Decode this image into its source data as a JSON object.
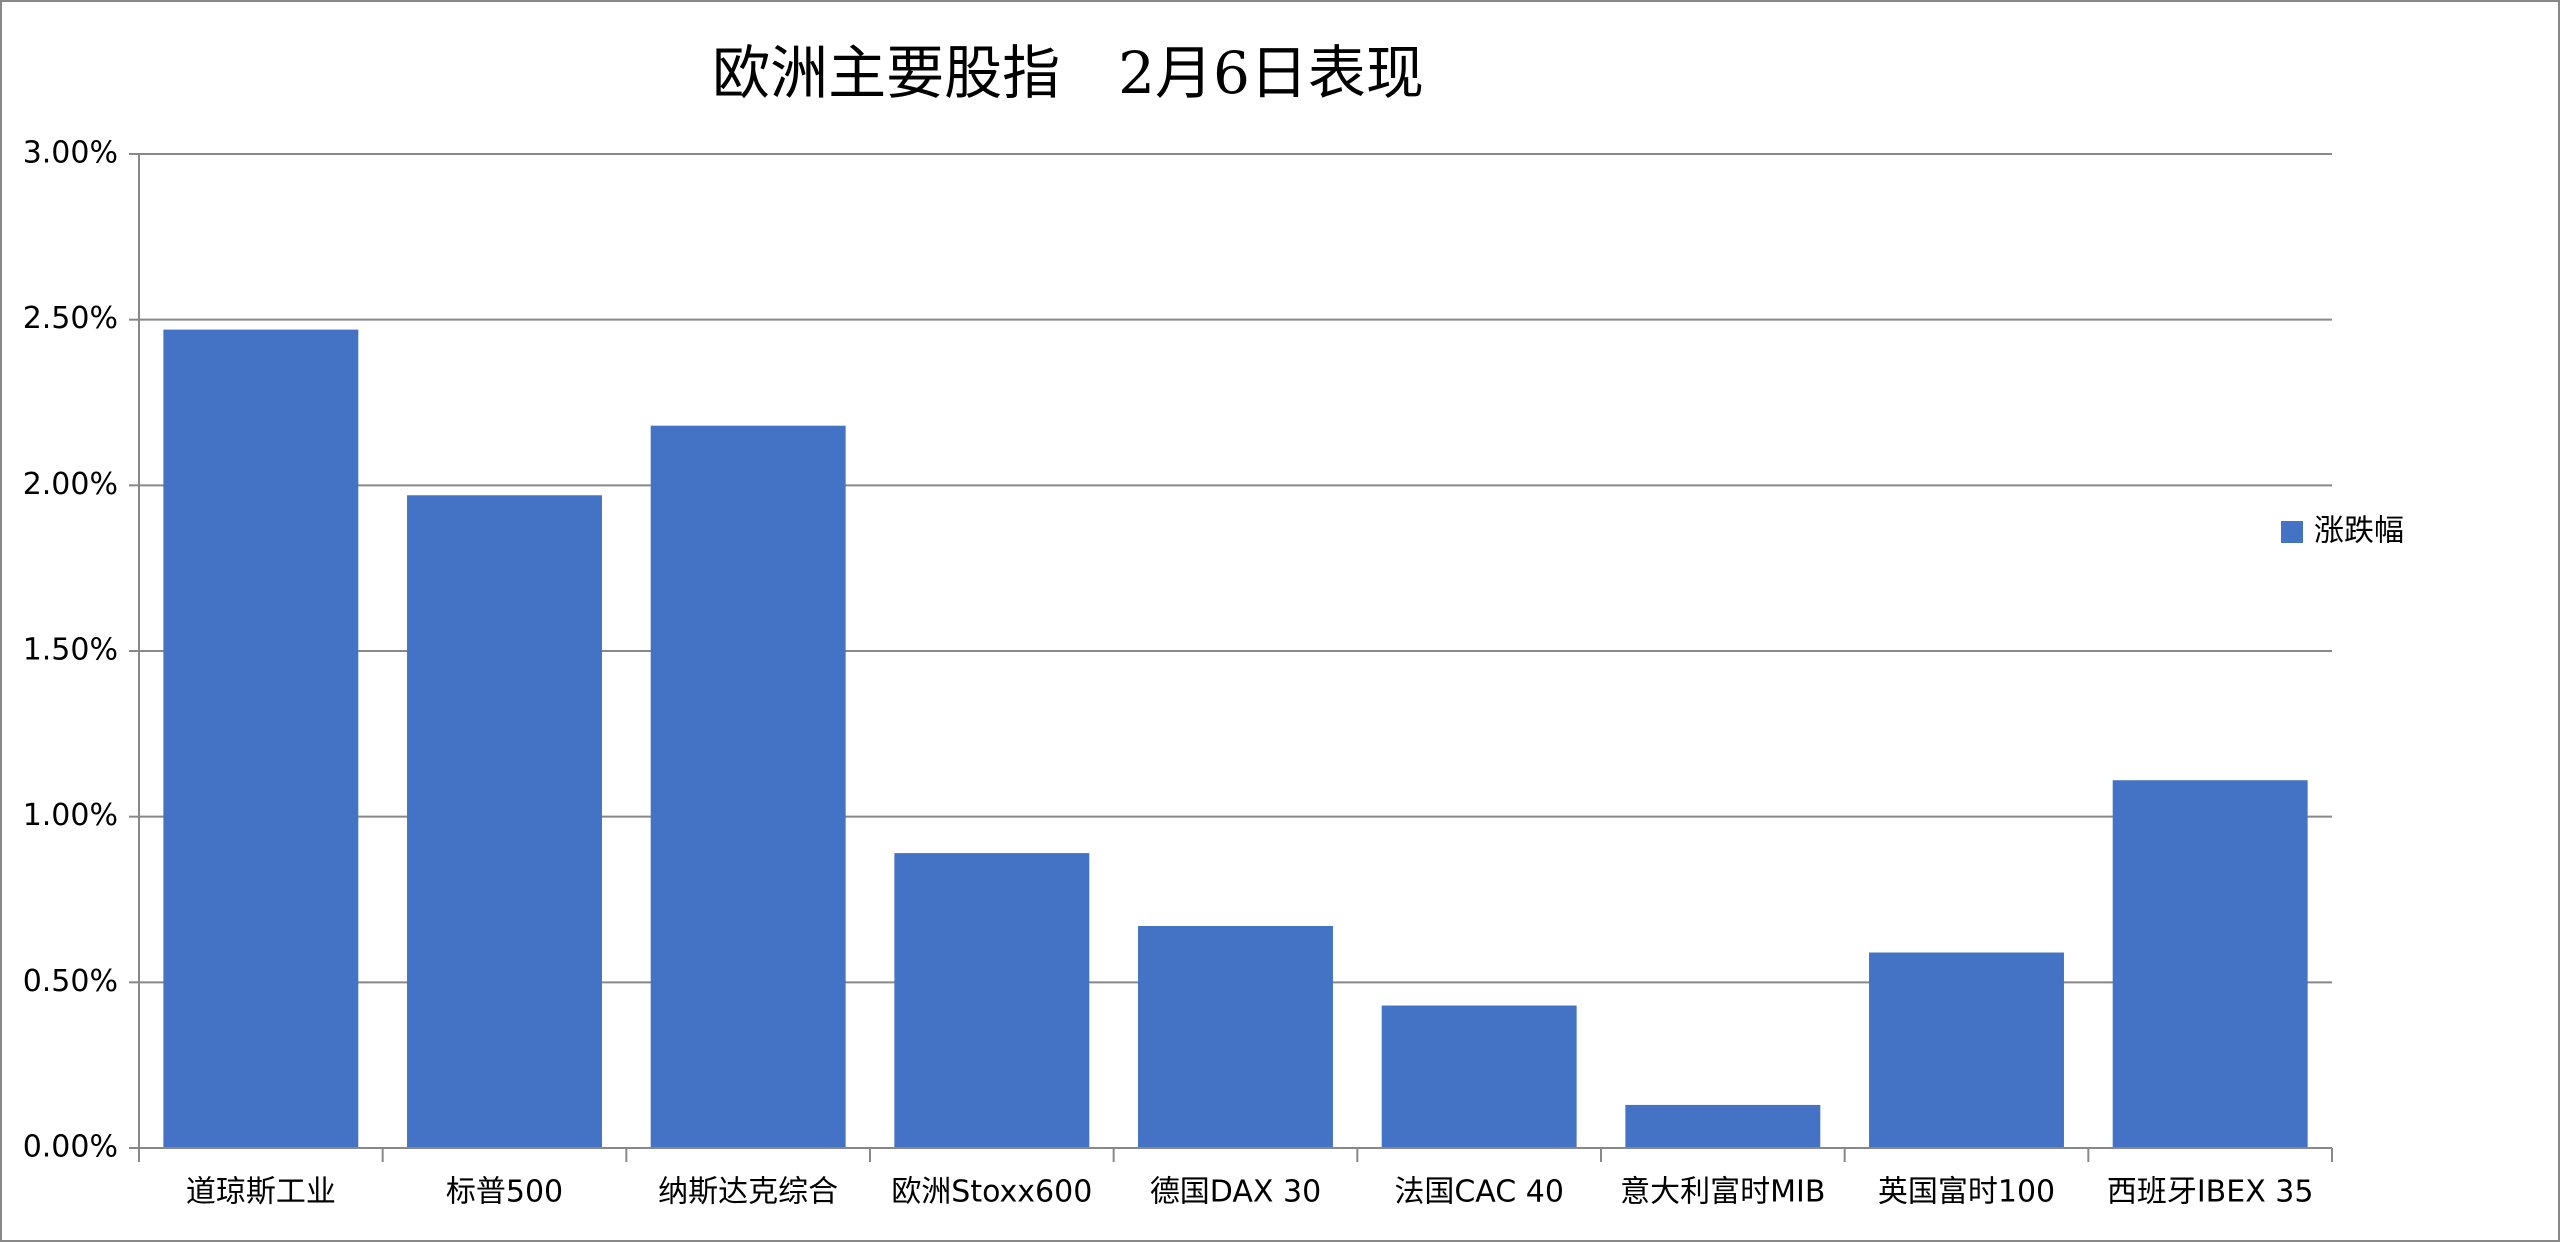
{
  "chart_data": {
    "type": "bar",
    "title": "欧洲主要股指　2月6日表现",
    "categories": [
      "道琼斯工业",
      "标普500",
      "纳斯达克综合",
      "欧洲Stoxx600",
      "德国DAX 30",
      "法国CAC 40",
      "意大利富时MIB",
      "英国富时100",
      "西班牙IBEX 35"
    ],
    "series": [
      {
        "name": "涨跌幅",
        "color": "#4472c4",
        "values": [
          2.47,
          1.97,
          2.18,
          0.89,
          0.67,
          0.43,
          0.13,
          0.59,
          1.11
        ]
      }
    ],
    "ylim": [
      0,
      3
    ],
    "yticks": [
      {
        "value": 0,
        "label": "0.00%"
      },
      {
        "value": 0.5,
        "label": "0.50%"
      },
      {
        "value": 1,
        "label": "1.00%"
      },
      {
        "value": 1.5,
        "label": "1.50%"
      },
      {
        "value": 2,
        "label": "2.00%"
      },
      {
        "value": 2.5,
        "label": "2.50%"
      },
      {
        "value": 3,
        "label": "3.00%"
      }
    ],
    "grid": true,
    "legend": "right"
  }
}
